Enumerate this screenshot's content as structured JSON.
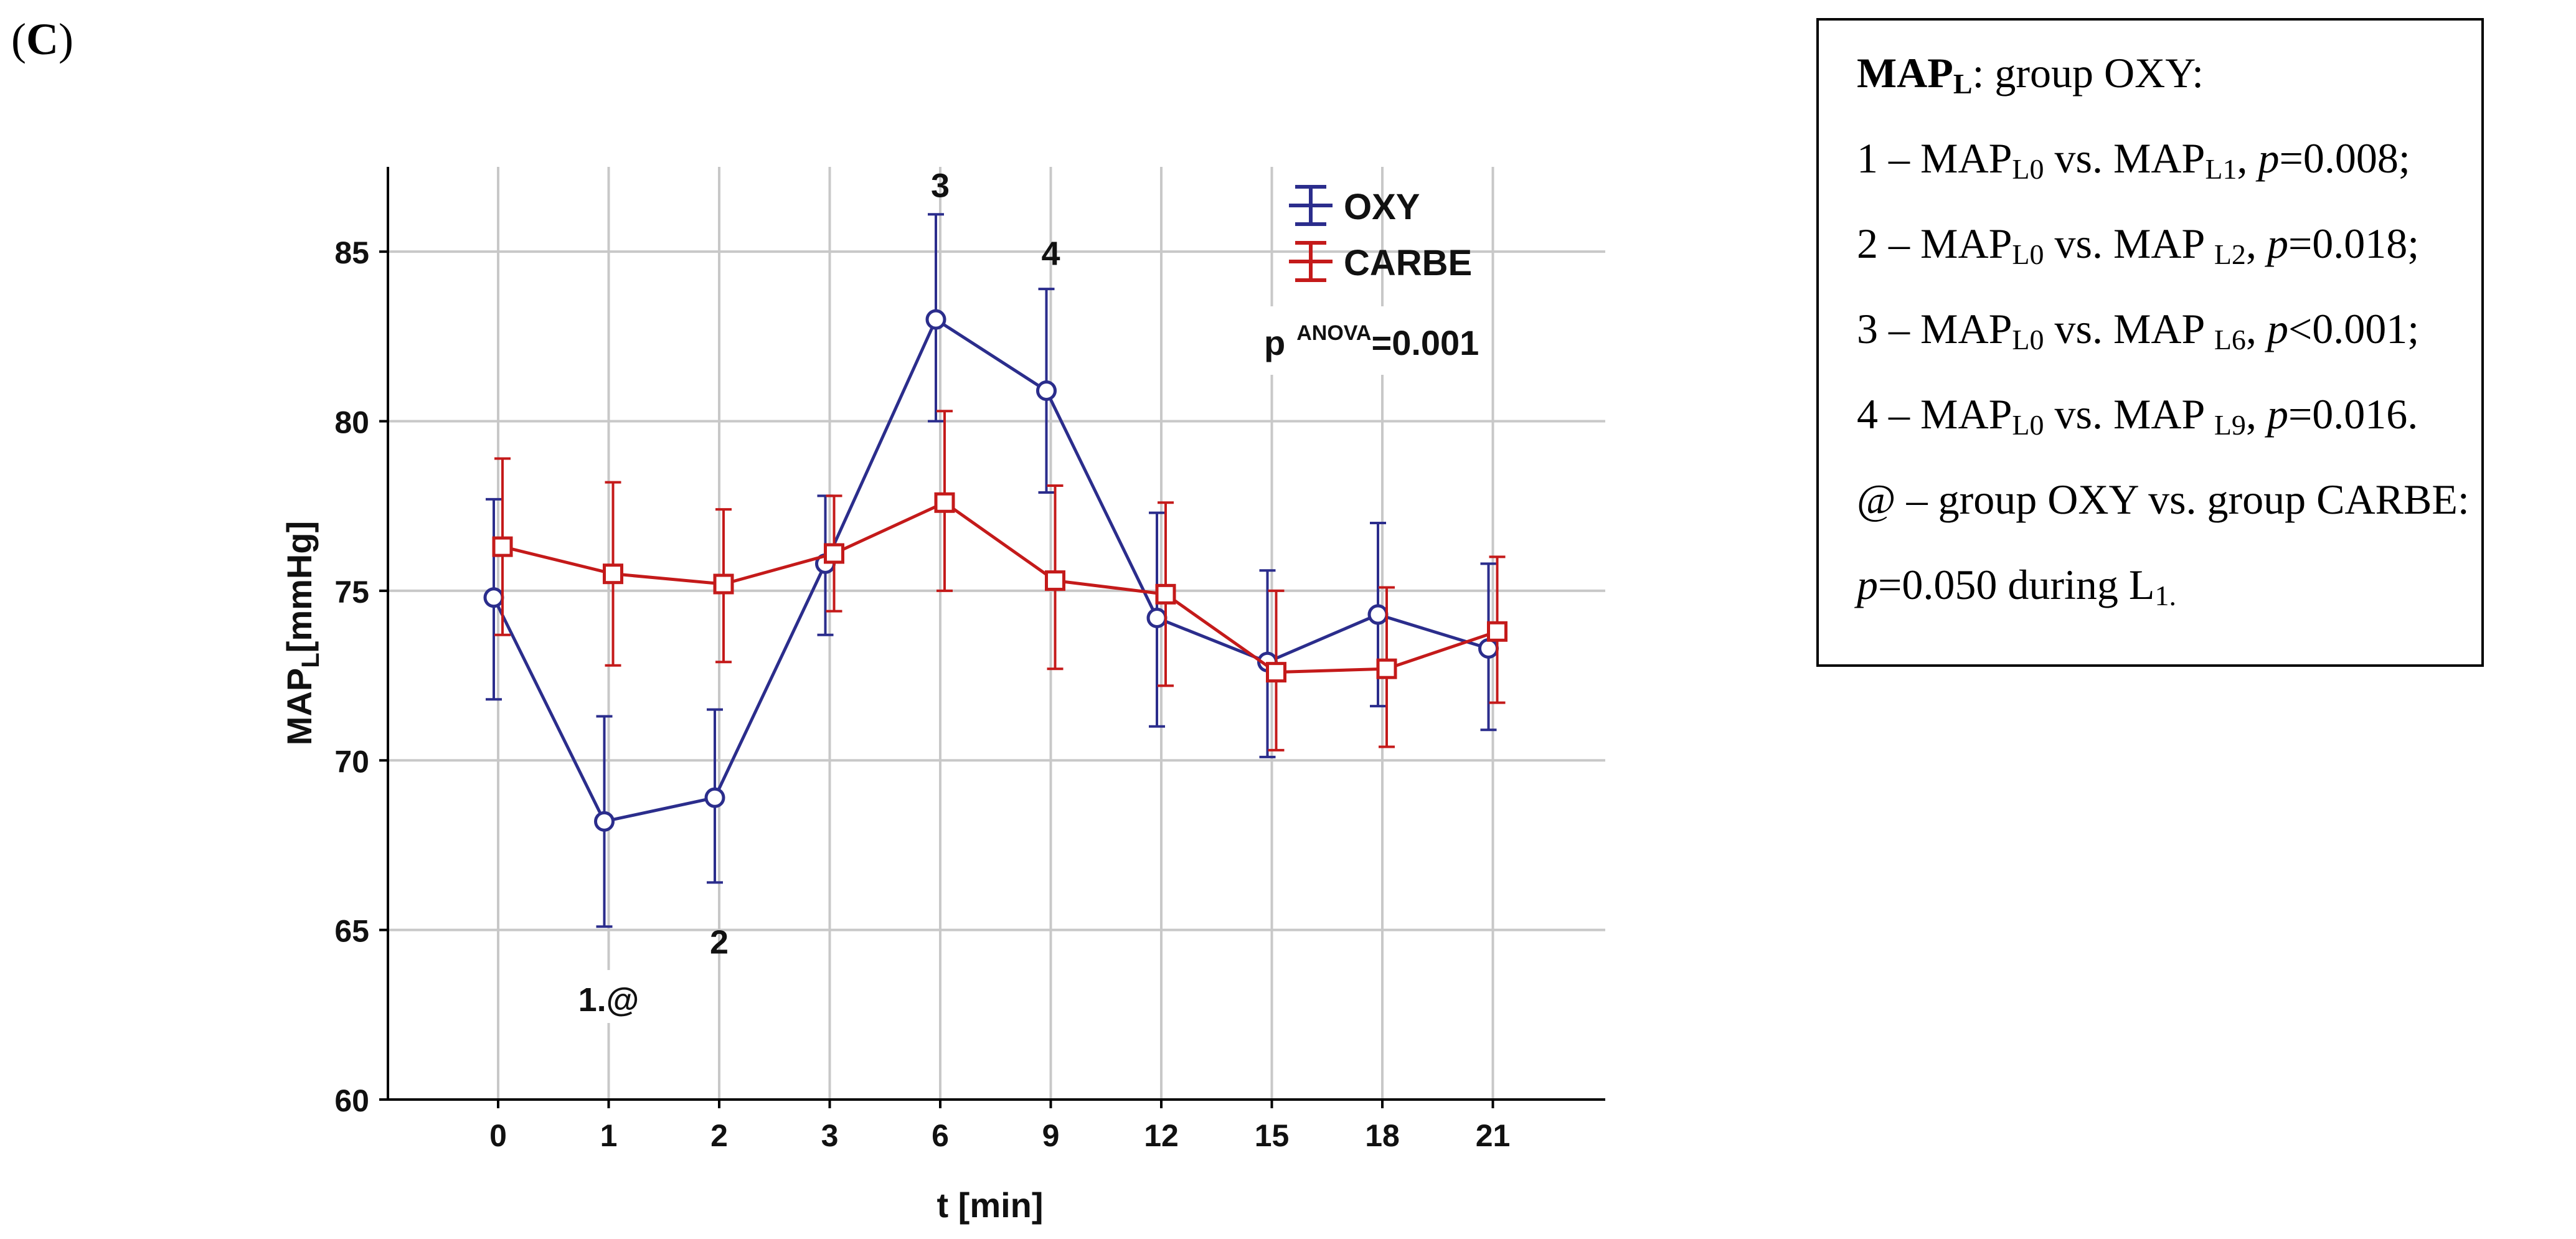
{
  "panel_label": {
    "open": "(",
    "letter": "C",
    "close": ")"
  },
  "chart_data": {
    "type": "line",
    "title": "",
    "xlabel": "t [min]",
    "ylabel_main": "MAP",
    "ylabel_sub": "L",
    "ylabel_unit": "[mmHg]",
    "categories": [
      "0",
      "1",
      "2",
      "3",
      "6",
      "9",
      "12",
      "15",
      "18",
      "21"
    ],
    "ylim": [
      60,
      87.5
    ],
    "yticks": [
      60,
      65,
      70,
      75,
      80,
      85
    ],
    "grid": true,
    "legend_position": "top-right",
    "series": [
      {
        "name": "OXY",
        "color": "#2b2d8c",
        "marker": "circle",
        "values": [
          74.8,
          68.2,
          68.9,
          75.8,
          83.0,
          80.9,
          74.2,
          72.9,
          74.3,
          73.3
        ],
        "err_low": [
          71.8,
          65.1,
          66.4,
          73.7,
          80.0,
          77.9,
          71.0,
          70.1,
          71.6,
          70.9
        ],
        "err_high": [
          77.7,
          71.3,
          71.5,
          77.8,
          86.1,
          83.9,
          77.3,
          75.6,
          77.0,
          75.8
        ]
      },
      {
        "name": "CARBE",
        "color": "#c41a1a",
        "marker": "square",
        "values": [
          76.3,
          75.5,
          75.2,
          76.1,
          77.6,
          75.3,
          74.9,
          72.6,
          72.7,
          73.8
        ],
        "err_low": [
          73.7,
          72.8,
          72.9,
          74.4,
          75.0,
          72.7,
          72.2,
          70.3,
          70.4,
          71.7
        ],
        "err_high": [
          78.9,
          78.2,
          77.4,
          77.8,
          80.3,
          78.1,
          77.6,
          75.0,
          75.1,
          76.0
        ]
      }
    ],
    "annotations": [
      {
        "text": "1.@",
        "category": "1",
        "y": 62.9
      },
      {
        "text": "2",
        "category": "2",
        "y": 64.6
      },
      {
        "text": "3",
        "category": "6",
        "y": 86.9
      },
      {
        "text": "4",
        "category": "9",
        "y": 84.9
      }
    ],
    "anova": {
      "prefix": "p",
      "superscript": "ANOVA",
      "value": "=0.001"
    }
  },
  "stats_box": {
    "title_main": "MAP",
    "title_sub": "L",
    "title_rest": ": group OXY:",
    "lines": [
      {
        "num": "1 – MAP",
        "s1": "L0",
        "mid": " vs. MAP",
        "s2": "L1",
        "p": "p",
        "val": "=0.008;"
      },
      {
        "num": "2 – MAP",
        "s1": "L0",
        "mid": " vs. MAP ",
        "s2": "L2",
        "p": "p",
        "val": "=0.018;"
      },
      {
        "num": "3 – MAP",
        "s1": "L0",
        "mid": " vs. MAP ",
        "s2": "L6",
        "p": "p",
        "val": "<0.001;"
      },
      {
        "num": "4 – MAP",
        "s1": "L0",
        "mid": " vs. MAP ",
        "s2": "L9",
        "p": "p",
        "val": "=0.016."
      }
    ],
    "at_line": "@ – group OXY vs. group CARBE:",
    "last_p": "p",
    "last_rest": "=0.050 during L",
    "last_sub": "1."
  }
}
